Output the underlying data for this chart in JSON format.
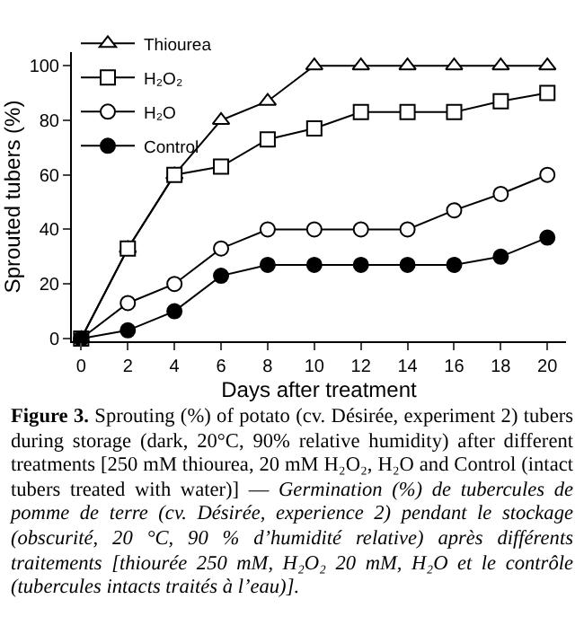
{
  "chart_data": {
    "type": "line",
    "x": [
      0,
      2,
      4,
      6,
      8,
      10,
      12,
      14,
      16,
      18,
      20
    ],
    "series": [
      {
        "name": "Thiourea",
        "color": "#ffffff",
        "marker": "triangle",
        "values": [
          0,
          33,
          60,
          80,
          87,
          100,
          100,
          100,
          100,
          100,
          100
        ]
      },
      {
        "name": "H₂O₂",
        "color": "#ffffff",
        "marker": "square",
        "values": [
          0,
          33,
          60,
          63,
          73,
          77,
          83,
          83,
          83,
          87,
          90
        ]
      },
      {
        "name": "H₂O",
        "color": "#ffffff",
        "marker": "circle",
        "values": [
          0,
          13,
          20,
          33,
          40,
          40,
          40,
          40,
          47,
          53,
          60
        ]
      },
      {
        "name": "Control",
        "color": "#000000",
        "marker": "circle",
        "values": [
          0,
          3,
          10,
          23,
          27,
          27,
          27,
          27,
          27,
          30,
          37
        ]
      }
    ],
    "xlabel": "Days after treatment",
    "ylabel": "Sprouted tubers (%)",
    "xlim": [
      -0.4,
      20.8
    ],
    "xticks": [
      0,
      2,
      4,
      6,
      8,
      10,
      12,
      14,
      16,
      18,
      20
    ],
    "ylim": [
      -1,
      105
    ],
    "yticks": [
      0,
      20,
      40,
      60,
      80,
      100
    ],
    "grid": false,
    "legend": "top left",
    "line_style": "solid",
    "annotations": [
      "Figure 3.",
      "Sprouting (%) of potato (cv. Désirée, experiment 2) tubers during storage (dark, 20°C, 90% relative humidity) after different treatments [250 mM thiourea, 20 mM H₂O₂, H₂O and Control (intact tubers treated with water)] —",
      "Germination (%) de tubercules de pomme de terre (cv. Désirée, experience 2) pendant le stockage (obscurité, 20 °C, 90 % d’humidité relative) après différents traitements [thiourée 250 mM, H₂O₂ 20 mM, H₂O et le contrôle (tubercules intacts traités à l’eau)]."
    ]
  }
}
